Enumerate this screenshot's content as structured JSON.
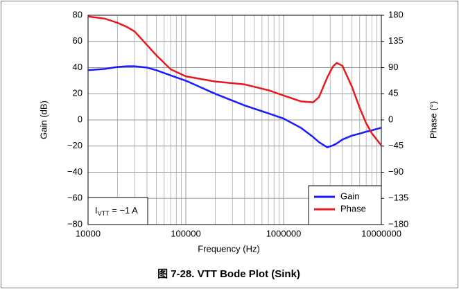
{
  "chart_data": {
    "type": "line",
    "title": "图 7-28. VTT Bode Plot (Sink)",
    "xlabel": "Frequency (Hz)",
    "ylabel": "Gain (dB)",
    "y2label": "Phase (°)",
    "xscale": "log",
    "xlim": [
      10000,
      10000000
    ],
    "xticks": [
      10000,
      100000,
      1000000,
      10000000
    ],
    "ylim": [
      -80,
      80
    ],
    "yticks": [
      {
        "value": -80,
        "label": "−80"
      },
      {
        "value": -60,
        "label": "−60"
      },
      {
        "value": -40,
        "label": "−40"
      },
      {
        "value": -20,
        "label": "−20"
      },
      0,
      20,
      40,
      60,
      80
    ],
    "y2lim": [
      -180,
      180
    ],
    "y2ticks": [
      {
        "value": -180,
        "label": "−180"
      },
      {
        "value": -135,
        "label": "−135"
      },
      {
        "value": -90,
        "label": "−90"
      },
      {
        "value": -45,
        "label": "−45"
      },
      0,
      45,
      90,
      135,
      180
    ],
    "grid": true,
    "legend": "lower right",
    "annotation": {
      "main": "I",
      "sub": "VTT",
      "rest": " = −1 A"
    },
    "x": [
      10000,
      15000,
      20000,
      25000,
      30000,
      40000,
      50000,
      70000,
      100000,
      200000,
      400000,
      700000,
      1000000,
      1500000,
      2000000,
      2300000,
      2800000,
      3200000,
      3500000,
      4000000,
      5000000,
      6000000,
      7000000,
      8000000,
      10000000
    ],
    "series": [
      {
        "name": "Gain",
        "color": "#1a1aff",
        "values": [
          38,
          39,
          40.5,
          41,
          41,
          40,
          38,
          34,
          30,
          20,
          11,
          5,
          1,
          -6,
          -13,
          -17,
          -21,
          -19.5,
          -18,
          -15,
          -12,
          -10.5,
          -9,
          -8,
          -6
        ]
      },
      {
        "name": "Phase",
        "color": "#e8191e",
        "axis": "y2",
        "values": [
          178,
          174,
          167,
          160,
          152,
          129,
          111,
          87,
          75,
          66,
          61,
          51,
          42,
          32,
          30,
          39,
          73,
          92,
          98,
          93,
          57,
          21,
          -6,
          -23,
          -44
        ]
      }
    ]
  }
}
